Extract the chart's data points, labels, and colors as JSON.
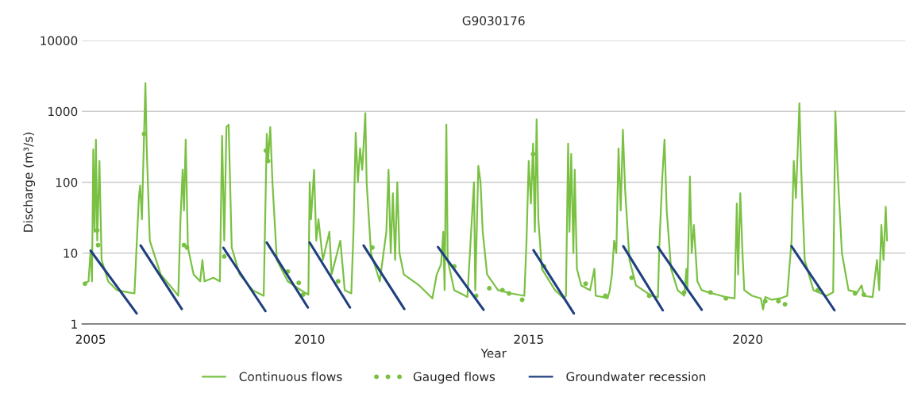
{
  "chart_data": {
    "type": "line",
    "title": "G9030176",
    "xlabel": "Year",
    "ylabel": "Discharge (m³/s)",
    "log": "y",
    "xlim": [
      2004.8,
      2023.6
    ],
    "xticks": [
      2005,
      2010,
      2015,
      2020
    ],
    "ylim": [
      1,
      10000
    ],
    "yticks": [
      1,
      10,
      100,
      1000,
      10000
    ],
    "grid": "y",
    "legend": "bottom",
    "tick_labels": "xy",
    "series": [
      {
        "name": "Continuous flows",
        "color": "#7ac143",
        "marker": "none",
        "line_style": "solid",
        "x": [
          2004.85,
          2004.95,
          2005.0,
          2005.03,
          2005.06,
          2005.09,
          2005.12,
          2005.15,
          2005.2,
          2005.25,
          2005.4,
          2005.6,
          2005.85,
          2006.0,
          2006.05,
          2006.1,
          2006.13,
          2006.17,
          2006.22,
          2006.25,
          2006.28,
          2006.35,
          2006.6,
          2006.9,
          2007.0,
          2007.05,
          2007.1,
          2007.13,
          2007.17,
          2007.22,
          2007.35,
          2007.5,
          2007.55,
          2007.6,
          2007.8,
          2007.95,
          2008.0,
          2008.05,
          2008.1,
          2008.15,
          2008.22,
          2008.4,
          2008.7,
          2008.95,
          2009.0,
          2009.02,
          2009.05,
          2009.1,
          2009.15,
          2009.25,
          2009.5,
          2009.8,
          2009.97,
          2010.0,
          2010.03,
          2010.1,
          2010.15,
          2010.2,
          2010.3,
          2010.45,
          2010.5,
          2010.7,
          2010.8,
          2010.95,
          2011.0,
          2011.05,
          2011.1,
          2011.15,
          2011.2,
          2011.27,
          2011.3,
          2011.4,
          2011.6,
          2011.75,
          2011.8,
          2011.85,
          2011.9,
          2011.95,
          2012.0,
          2012.05,
          2012.15,
          2012.5,
          2012.8,
          2012.9,
          2013.0,
          2013.05,
          2013.08,
          2013.12,
          2013.15,
          2013.3,
          2013.5,
          2013.6,
          2013.75,
          2013.78,
          2013.85,
          2013.9,
          2013.95,
          2014.05,
          2014.3,
          2014.6,
          2014.9,
          2014.95,
          2015.0,
          2015.05,
          2015.1,
          2015.14,
          2015.18,
          2015.22,
          2015.3,
          2015.6,
          2015.8,
          2015.85,
          2015.9,
          2015.93,
          2015.97,
          2016.02,
          2016.05,
          2016.1,
          2016.2,
          2016.4,
          2016.5,
          2016.53,
          2016.7,
          2016.8,
          2016.85,
          2016.9,
          2016.95,
          2017.0,
          2017.05,
          2017.1,
          2017.15,
          2017.2,
          2017.3,
          2017.45,
          2017.8,
          2017.95,
          2017.98,
          2018.05,
          2018.1,
          2018.15,
          2018.25,
          2018.4,
          2018.55,
          2018.6,
          2018.62,
          2018.68,
          2018.72,
          2018.77,
          2018.85,
          2018.95,
          2019.1,
          2019.3,
          2019.5,
          2019.7,
          2019.75,
          2019.78,
          2019.83,
          2019.88,
          2019.92,
          2020.1,
          2020.3,
          2020.35,
          2020.4,
          2020.55,
          2020.75,
          2020.9,
          2021.0,
          2021.05,
          2021.1,
          2021.18,
          2021.22,
          2021.3,
          2021.5,
          2021.8,
          2021.95,
          2022.0,
          2022.05,
          2022.15,
          2022.3,
          2022.5,
          2022.6,
          2022.65,
          2022.85,
          2022.95,
          2023.0,
          2023.05,
          2023.1,
          2023.15,
          2023.18
        ],
        "values": [
          3.7,
          4,
          11,
          4,
          290,
          20,
          400,
          15,
          200,
          8,
          4,
          3,
          2.8,
          2.7,
          13,
          60,
          90,
          30,
          500,
          2500,
          300,
          15,
          5,
          3,
          2.5,
          30,
          150,
          40,
          400,
          12,
          5,
          4,
          8,
          4,
          4.5,
          4,
          450,
          15,
          600,
          650,
          12,
          5,
          3,
          2.5,
          100,
          480,
          200,
          600,
          100,
          8,
          4,
          3,
          2.6,
          100,
          30,
          150,
          15,
          30,
          8,
          20,
          5,
          15,
          3,
          2.7,
          20,
          500,
          100,
          300,
          150,
          950,
          100,
          10,
          4,
          20,
          150,
          10,
          70,
          8,
          100,
          10,
          5,
          3.5,
          2.3,
          5,
          7,
          20,
          3,
          650,
          8,
          3,
          2.6,
          2.4,
          100,
          3,
          170,
          100,
          20,
          5,
          3,
          2.7,
          2.5,
          15,
          200,
          50,
          350,
          20,
          770,
          30,
          6,
          3,
          2.3,
          2.5,
          350,
          20,
          250,
          10,
          150,
          6,
          3.5,
          3,
          6,
          2.5,
          2.4,
          2.3,
          3,
          5,
          15,
          10,
          300,
          40,
          550,
          80,
          8,
          3.5,
          2.5,
          2.4,
          12,
          120,
          400,
          40,
          6,
          3,
          2.5,
          6,
          3,
          120,
          10,
          25,
          4,
          3,
          2.8,
          2.6,
          2.4,
          2.3,
          50,
          5,
          70,
          10,
          3,
          2.5,
          2.3,
          1.6,
          2.4,
          2.2,
          2.3,
          2.5,
          15,
          200,
          60,
          1300,
          150,
          8,
          3,
          2.5,
          2.8,
          1000,
          150,
          10,
          3,
          2.8,
          3.5,
          2.5,
          2.4,
          8,
          3,
          25,
          8,
          45,
          15
        ]
      },
      {
        "name": "Gauged flows",
        "type": "scatter",
        "color": "#7ac143",
        "marker": "circle",
        "x": [
          2004.87,
          2005.15,
          2005.17,
          2006.22,
          2007.13,
          2007.2,
          2008.05,
          2009.0,
          2009.05,
          2009.5,
          2009.75,
          2009.85,
          2010.65,
          2011.43,
          2013.3,
          2013.8,
          2014.1,
          2014.4,
          2014.55,
          2014.85,
          2015.1,
          2015.12,
          2015.35,
          2016.3,
          2016.75,
          2017.35,
          2017.75,
          2018.55,
          2019.15,
          2019.5,
          2020.4,
          2020.7,
          2020.85,
          2021.6,
          2022.45,
          2022.65
        ],
        "values": [
          3.7,
          21,
          13,
          480,
          13,
          12,
          9,
          280,
          200,
          5.5,
          3.8,
          2.6,
          4,
          12,
          6.5,
          2.5,
          3.2,
          3.0,
          2.7,
          2.2,
          250,
          115,
          6.5,
          3.7,
          2.5,
          4.5,
          2.5,
          2.8,
          2.8,
          2.3,
          2.1,
          2.1,
          1.9,
          3,
          2.7,
          2.6
        ]
      },
      {
        "name": "Groundwater recession",
        "color": "#1f3f7f",
        "marker": "none",
        "line_style": "solid",
        "x": [
          2005.0,
          2006.05,
          null,
          2006.14,
          2007.08,
          null,
          2008.03,
          2008.99,
          null,
          2009.02,
          2009.96,
          null,
          2010.0,
          2010.92,
          null,
          2011.23,
          2012.16,
          null,
          2012.93,
          2013.97,
          null,
          2015.11,
          2016.03,
          null,
          2017.16,
          2018.06,
          null,
          2017.95,
          2018.95,
          null,
          2021.0,
          2021.98
        ],
        "values": [
          10.8,
          1.41,
          null,
          12.8,
          1.63,
          null,
          11.9,
          1.52,
          null,
          14.1,
          1.71,
          null,
          14.1,
          1.71,
          null,
          12.8,
          1.63,
          null,
          12.2,
          1.59,
          null,
          11.0,
          1.41,
          null,
          12.5,
          1.56,
          null,
          12.2,
          1.59,
          null,
          12.5,
          1.56
        ]
      }
    ]
  }
}
